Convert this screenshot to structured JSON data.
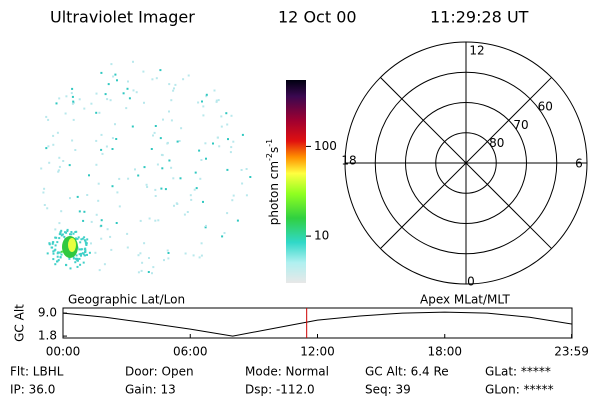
{
  "header": {
    "instrument": "Ultraviolet Imager",
    "date": "12 Oct 00",
    "time": "11:29:28 UT"
  },
  "colorbar": {
    "label": [
      "photon cm",
      "-2",
      "s",
      "-1"
    ],
    "range": [
      3,
      550
    ],
    "ticks": [
      10,
      100
    ],
    "log": true
  },
  "polar": {
    "lat_min": 50,
    "rings": [
      60,
      70,
      80
    ],
    "mlt_labels": [
      "12",
      "6",
      "0",
      "18"
    ]
  },
  "timeline": {
    "left_label": "Geographic Lat/Lon",
    "right_label": "Apex MLat/MLT",
    "y_label": "GC Alt",
    "ylim": [
      1.2,
      10.6
    ],
    "yticks": [
      {
        "value": 9.0,
        "label": "9.0"
      },
      1.8
    ],
    "xlim": [
      0,
      24
    ],
    "xticks": [
      {
        "value": 0,
        "label": "00:00"
      },
      {
        "value": 6,
        "label": "06:00"
      },
      {
        "value": 12,
        "label": "12:00"
      },
      {
        "value": 18,
        "label": "18:00"
      },
      {
        "value": 23.98,
        "label": "23:59"
      }
    ],
    "x": [
      0,
      2,
      4,
      6,
      8,
      10,
      12,
      14,
      16,
      18,
      20,
      22,
      23.98
    ],
    "values": [
      9.0,
      7.7,
      5.9,
      4.0,
      1.8,
      4.3,
      6.8,
      8.1,
      9.0,
      9.3,
      9.0,
      7.7,
      5.6
    ],
    "color": "#000000",
    "marker_hour": 11.49,
    "marker_color": "#cc0000"
  },
  "info": [
    [
      "Flt: LBHL",
      "IP: 36.0"
    ],
    [
      "Door: Open",
      "Gain: 13"
    ],
    [
      "Mode: Normal",
      "Dsp: -112.0"
    ],
    [
      "GC Alt: 6.4 Re",
      "Seq: 39"
    ],
    [
      "GLat: *****",
      "GLon: *****"
    ]
  ]
}
